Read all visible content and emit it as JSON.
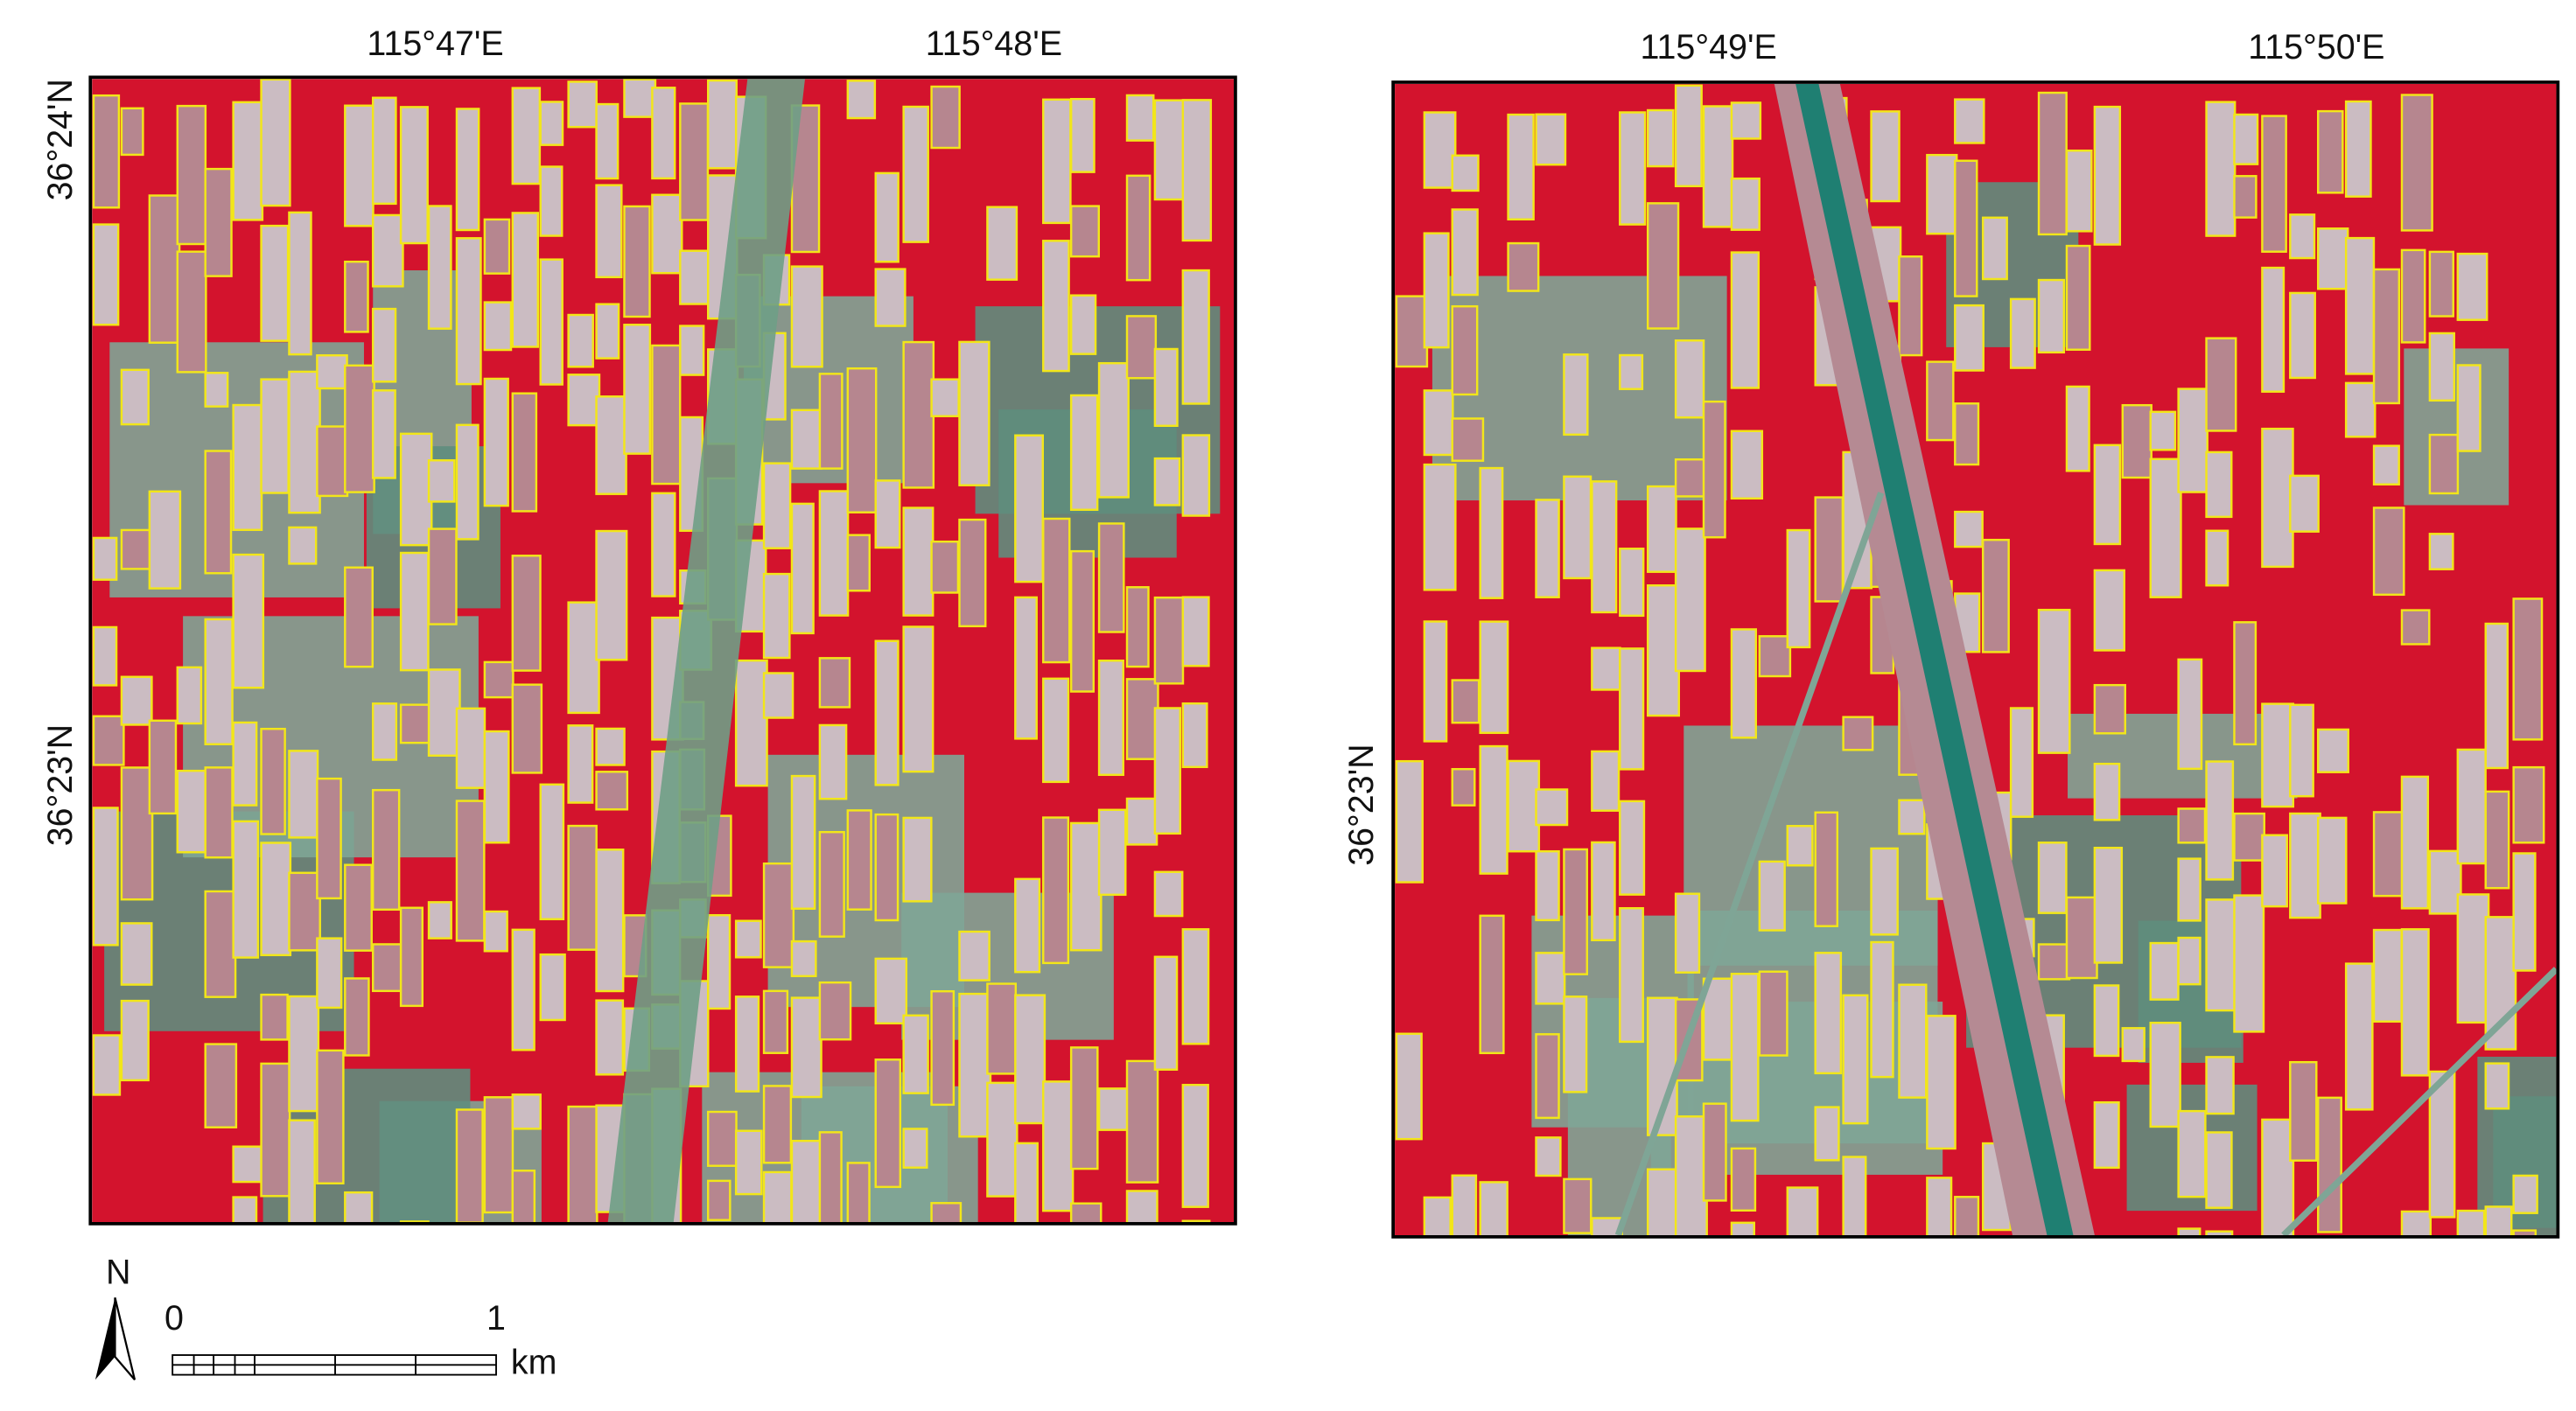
{
  "panels": [
    {
      "lon_labels": [
        "115°47'E",
        "115°48'E"
      ],
      "lat_labels": [
        "36°24'N",
        "36°23'N"
      ]
    },
    {
      "lon_labels": [
        "115°49'E",
        "115°50'E"
      ],
      "lat_labels": [
        "36°23'N"
      ]
    }
  ],
  "north_arrow": {
    "label": "N"
  },
  "scale_bar": {
    "labels": [
      "0",
      "1"
    ],
    "unit": "km"
  }
}
